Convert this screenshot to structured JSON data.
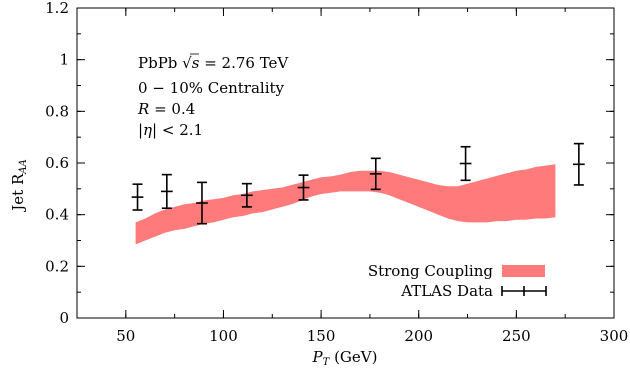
{
  "chart_data": {
    "type": "line",
    "xlabel_main": "P",
    "xlabel_sub": "T",
    "xlabel_unit": " (GeV)",
    "ylabel_main": "Jet R",
    "ylabel_sub": "AA",
    "xlim": [
      25,
      300
    ],
    "ylim": [
      0,
      1.2
    ],
    "xticks": [
      50,
      100,
      150,
      200,
      250,
      300
    ],
    "yticks": [
      0,
      0.2,
      0.4,
      0.6,
      0.8,
      1,
      1.2
    ],
    "xtick_labels": [
      "50",
      "100",
      "150",
      "200",
      "250",
      "300"
    ],
    "ytick_labels": [
      "0",
      "0.2",
      "0.4",
      "0.6",
      "0.8",
      "1",
      "1.2"
    ],
    "annotations": {
      "line1_prefix": "PbPb ",
      "line1_sqrt": "√",
      "line1_s": "s",
      "line1_suffix": " = 2.76 TeV",
      "line2": "0 − 10% Centrality",
      "line3_var": "R",
      "line3_rest": " = 0.4",
      "line4_var": "|η|",
      "line4_rest": " < 2.1"
    },
    "legend": {
      "band_label": "Strong Coupling",
      "points_label": "ATLAS Data",
      "band_color": "#ff7b7b",
      "points_color": "#000000"
    },
    "band": {
      "name": "Strong Coupling",
      "x": [
        55,
        60,
        65,
        70,
        75,
        80,
        85,
        90,
        95,
        100,
        105,
        110,
        115,
        120,
        125,
        130,
        135,
        140,
        145,
        150,
        155,
        160,
        165,
        170,
        175,
        180,
        185,
        190,
        195,
        200,
        205,
        210,
        215,
        220,
        225,
        230,
        235,
        240,
        245,
        250,
        255,
        260,
        265,
        270
      ],
      "upper": [
        0.37,
        0.385,
        0.405,
        0.42,
        0.43,
        0.44,
        0.445,
        0.455,
        0.46,
        0.465,
        0.475,
        0.48,
        0.49,
        0.495,
        0.5,
        0.505,
        0.515,
        0.525,
        0.535,
        0.545,
        0.548,
        0.555,
        0.565,
        0.57,
        0.57,
        0.57,
        0.565,
        0.555,
        0.545,
        0.535,
        0.525,
        0.515,
        0.51,
        0.51,
        0.52,
        0.53,
        0.54,
        0.55,
        0.56,
        0.57,
        0.575,
        0.585,
        0.59,
        0.595
      ],
      "lower": [
        0.285,
        0.3,
        0.315,
        0.33,
        0.34,
        0.345,
        0.355,
        0.365,
        0.37,
        0.38,
        0.39,
        0.395,
        0.405,
        0.41,
        0.42,
        0.43,
        0.44,
        0.455,
        0.47,
        0.48,
        0.485,
        0.49,
        0.49,
        0.49,
        0.49,
        0.485,
        0.475,
        0.46,
        0.445,
        0.43,
        0.415,
        0.4,
        0.385,
        0.375,
        0.37,
        0.37,
        0.37,
        0.375,
        0.375,
        0.38,
        0.38,
        0.385,
        0.385,
        0.39
      ]
    },
    "series": [
      {
        "name": "ATLAS Data",
        "x": [
          56,
          71,
          89,
          112,
          141,
          178,
          224,
          282
        ],
        "y": [
          0.468,
          0.49,
          0.445,
          0.475,
          0.505,
          0.558,
          0.598,
          0.595
        ],
        "yerr": [
          0.05,
          0.065,
          0.08,
          0.045,
          0.048,
          0.06,
          0.065,
          0.08
        ],
        "xerr": [
          3,
          3,
          3,
          3,
          3,
          3,
          3,
          3
        ]
      }
    ]
  }
}
